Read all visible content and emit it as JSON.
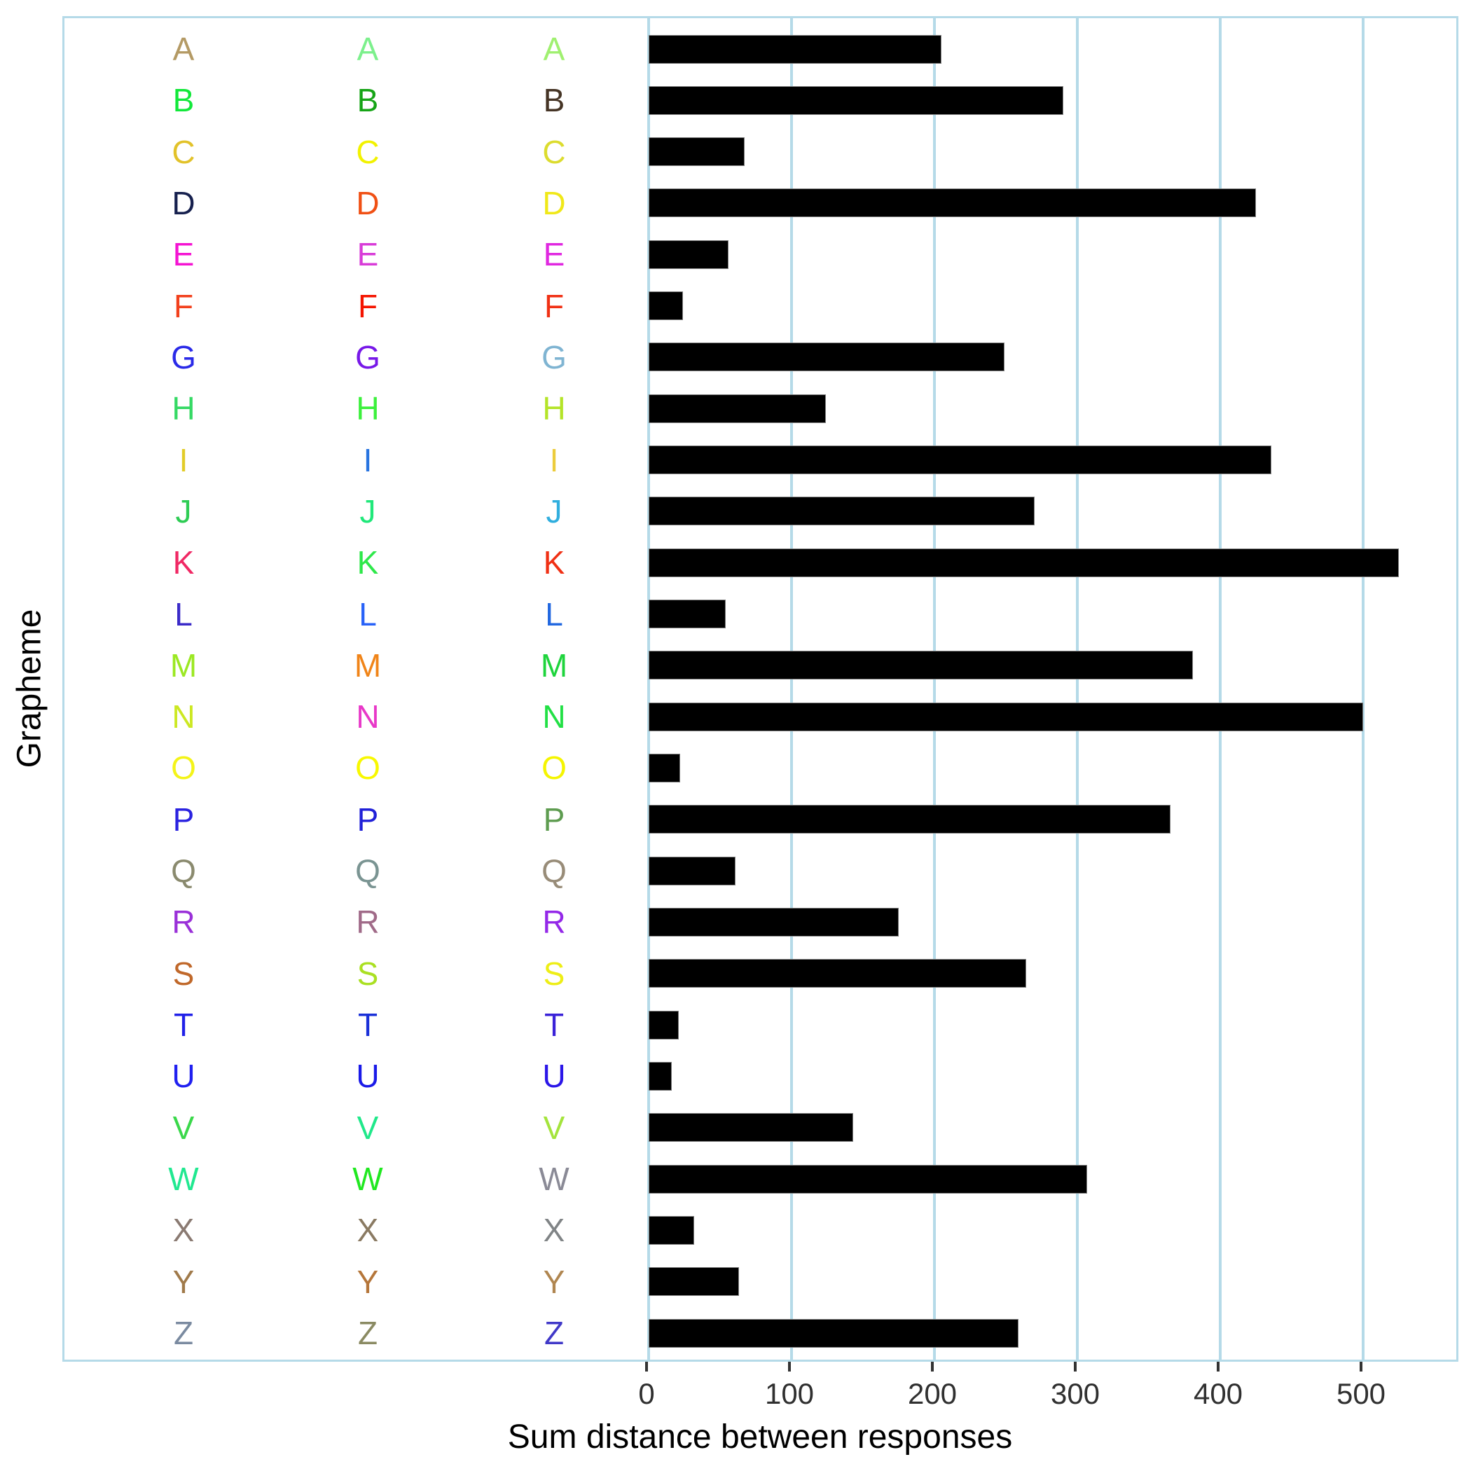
{
  "chart_data": {
    "type": "bar",
    "orientation": "horizontal",
    "title": "",
    "xlabel": "Sum distance between responses",
    "ylabel": "Grapheme",
    "xlim": [
      0,
      568
    ],
    "x_ticks": [
      0,
      100,
      200,
      300,
      400,
      500
    ],
    "grid": "major-x-only",
    "legend": "none",
    "categories": [
      "A",
      "B",
      "C",
      "D",
      "E",
      "F",
      "G",
      "H",
      "I",
      "J",
      "K",
      "L",
      "M",
      "N",
      "O",
      "P",
      "Q",
      "R",
      "S",
      "T",
      "U",
      "V",
      "W",
      "X",
      "Y",
      "Z"
    ],
    "values": [
      205,
      290,
      67,
      425,
      56,
      24,
      249,
      124,
      436,
      270,
      525,
      54,
      381,
      500,
      22,
      365,
      61,
      175,
      264,
      21,
      16,
      143,
      307,
      32,
      63,
      259
    ],
    "letter_column_colors": {
      "col1": [
        "#b49a64",
        "#12e83a",
        "#e2c22a",
        "#16204e",
        "#f414d2",
        "#f2401c",
        "#2a2ae8",
        "#35d964",
        "#e2cc28",
        "#2ecc54",
        "#f02864",
        "#3a2ac8",
        "#9be822",
        "#cce822",
        "#f4f418",
        "#2a22e0",
        "#8a8a6e",
        "#9a30d8",
        "#c0682a",
        "#2020e8",
        "#2020f0",
        "#3ad84a",
        "#20e890",
        "#8a7a72",
        "#a07a4a",
        "#7a8aa0"
      ],
      "col2": [
        "#7cf08c",
        "#16a416",
        "#f2f200",
        "#f05014",
        "#d83cd8",
        "#f41400",
        "#7718e8",
        "#3cf03c",
        "#2874e0",
        "#20e87a",
        "#2ee84a",
        "#2862f8",
        "#f08418",
        "#e838c8",
        "#f8f800",
        "#2020d8",
        "#7a9492",
        "#a06a88",
        "#aae022",
        "#1a30d8",
        "#1a1ae8",
        "#20e88a",
        "#20e820",
        "#8a7a62",
        "#b5763a",
        "#8a8a62"
      ],
      "col3": [
        "#a0f070",
        "#453425",
        "#dcdc2e",
        "#f0e818",
        "#e028e0",
        "#f03014",
        "#7fb4d2",
        "#b4e428",
        "#eccc3c",
        "#30aede",
        "#f03014",
        "#2268e0",
        "#1ed43c",
        "#22e045",
        "#f5f500",
        "#5e9c50",
        "#988c78",
        "#9428e8",
        "#eeee16",
        "#3a22d8",
        "#2b16e8",
        "#a4e43c",
        "#8a8a96",
        "#808486",
        "#b08650",
        "#4038c8"
      ]
    },
    "colors": {
      "bar_fill": "#000000",
      "bar_stroke": "#808080",
      "gridline": "#b5dae8",
      "panel_border": "#b5dae8",
      "tick_mark": "#333333",
      "tick_label": "#303030",
      "axis_title": "#000000",
      "background": "#ffffff"
    }
  }
}
